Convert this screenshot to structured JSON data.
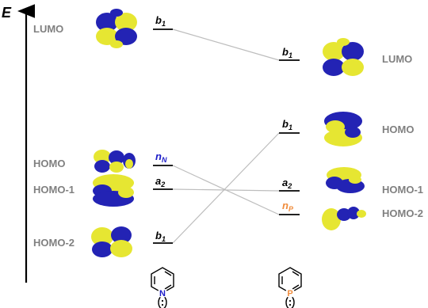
{
  "axis": {
    "label": "E"
  },
  "colors": {
    "level": "#222222",
    "connector": "#bdbdbd",
    "label_gray": "#808080",
    "n_nitrogen": "#1c1cc8",
    "n_phosphorus": "#f08c3c",
    "lobe_blue": "#2323b4",
    "lobe_yellow": "#e6e632",
    "nitrogen_atom": "#1c1cc8",
    "phosphorus_atom": "#f08c3c"
  },
  "left": {
    "orbital_labels": {
      "lumo": "LUMO",
      "homo": "HOMO",
      "homo1": "HOMO-1",
      "homo2": "HOMO-2"
    },
    "symmetry": {
      "lumo": {
        "main": "b",
        "sub": "1"
      },
      "homo": {
        "main": "n",
        "sub": "N"
      },
      "homo1": {
        "main": "a",
        "sub": "2"
      },
      "homo2": {
        "main": "b",
        "sub": "1"
      }
    },
    "molecule": {
      "atom": "N"
    }
  },
  "right": {
    "orbital_labels": {
      "lumo": "LUMO",
      "homo": "HOMO",
      "homo1": "HOMO-1",
      "homo2": "HOMO-2"
    },
    "symmetry": {
      "lumo": {
        "main": "b",
        "sub": "1"
      },
      "homo": {
        "main": "b",
        "sub": "1"
      },
      "homo1": {
        "main": "a",
        "sub": "2"
      },
      "homo2": {
        "main": "n",
        "sub": "P"
      }
    },
    "molecule": {
      "atom": "P"
    }
  }
}
